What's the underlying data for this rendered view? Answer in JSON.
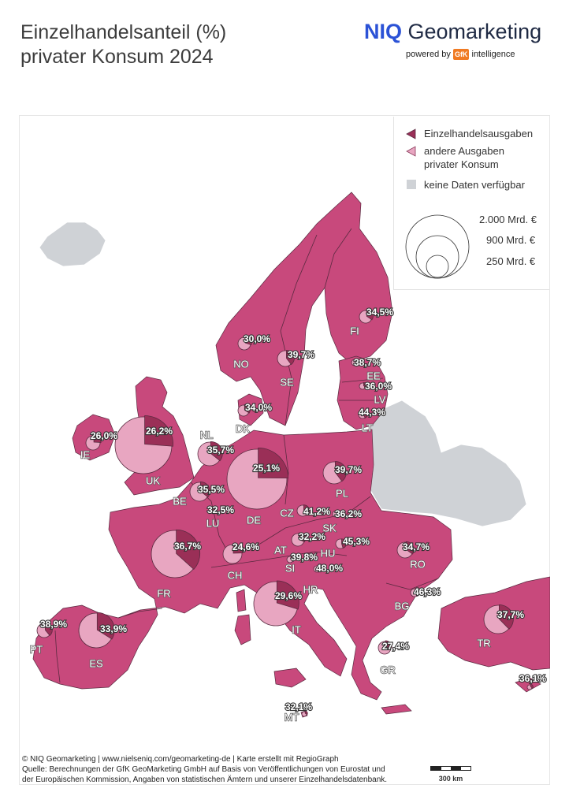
{
  "title": {
    "line1": "Einzelhandelsanteil (%)",
    "line2": "privater Konsum 2024"
  },
  "brand": {
    "niq": "NIQ",
    "geomarketing": " Geomarketing",
    "powered_by": "powered by",
    "gfk": "GfK",
    "intelligence": "intelligence"
  },
  "colors": {
    "country_fill": "#c8497c",
    "border": "#5a2a40",
    "no_data": "#cfd2d6",
    "retail_slice": "#9a2f57",
    "other_slice": "#e8a6c1",
    "sea": "#ffffff"
  },
  "legend": {
    "retail": "Einzelhandelsausgaben",
    "other_line1": "andere Ausgaben",
    "other_line2": "privater Konsum",
    "no_data": "keine Daten verfügbar",
    "size_large": "2.000 Mrd. €",
    "size_medium": "900 Mrd. €",
    "size_small": "250 Mrd. €"
  },
  "countries": [
    {
      "code": "UK",
      "share": 26.2,
      "label": "26,2%"
    },
    {
      "code": "IE",
      "share": 26.0,
      "label": "26,0%"
    },
    {
      "code": "NO",
      "share": 30.0,
      "label": "30,0%"
    },
    {
      "code": "SE",
      "share": 39.7,
      "label": "39,7%"
    },
    {
      "code": "FI",
      "share": 34.5,
      "label": "34,5%"
    },
    {
      "code": "EE",
      "share": 38.7,
      "label": "38,7%"
    },
    {
      "code": "LV",
      "share": 36.0,
      "label": "36,0%"
    },
    {
      "code": "LT",
      "share": 44.3,
      "label": "44,3%"
    },
    {
      "code": "DK",
      "share": 34.0,
      "label": "34,0%"
    },
    {
      "code": "NL",
      "share": 35.7,
      "label": "35,7%"
    },
    {
      "code": "BE",
      "share": 35.5,
      "label": "35,5%"
    },
    {
      "code": "LU",
      "share": 32.5,
      "label": "32,5%"
    },
    {
      "code": "DE",
      "share": 25.1,
      "label": "25,1%"
    },
    {
      "code": "PL",
      "share": 39.7,
      "label": "39,7%"
    },
    {
      "code": "CZ",
      "share": 41.2,
      "label": "41,2%"
    },
    {
      "code": "SK",
      "share": 36.2,
      "label": "36,2%"
    },
    {
      "code": "FR",
      "share": 36.7,
      "label": "36,7%"
    },
    {
      "code": "CH",
      "share": 24.6,
      "label": "24,6%"
    },
    {
      "code": "AT",
      "share": 32.2,
      "label": "32,2%"
    },
    {
      "code": "HU",
      "share": 45.3,
      "label": "45,3%"
    },
    {
      "code": "SI",
      "share": 39.8,
      "label": "39,8%"
    },
    {
      "code": "HR",
      "share": 48.0,
      "label": "48,0%"
    },
    {
      "code": "RO",
      "share": 34.7,
      "label": "34,7%"
    },
    {
      "code": "BG",
      "share": 46.3,
      "label": "46,3%"
    },
    {
      "code": "IT",
      "share": 29.6,
      "label": "29,6%"
    },
    {
      "code": "PT",
      "share": 38.9,
      "label": "38,9%"
    },
    {
      "code": "ES",
      "share": 33.9,
      "label": "33,9%"
    },
    {
      "code": "GR",
      "share": 27.4,
      "label": "27,4%"
    },
    {
      "code": "TR",
      "share": 37.7,
      "label": "37,7%"
    },
    {
      "code": "CY",
      "share": 36.1,
      "label": "36,1%"
    },
    {
      "code": "MT",
      "share": 32.1,
      "label": "32,1%"
    }
  ],
  "footer": {
    "line1": "© NIQ Geomarketing | www.nielseniq.com/geomarketing-de | Karte erstellt mit RegioGraph",
    "line2": "Quelle: Berechnungen der GfK GeoMarketing GmbH auf Basis von Veröffentlichungen von Eurostat und",
    "line3": "der Europäischen Kommission, Angaben von statistischen Ämtern und unserer Einzelhandelsdatenbank."
  },
  "scale": {
    "label": "300 km"
  }
}
